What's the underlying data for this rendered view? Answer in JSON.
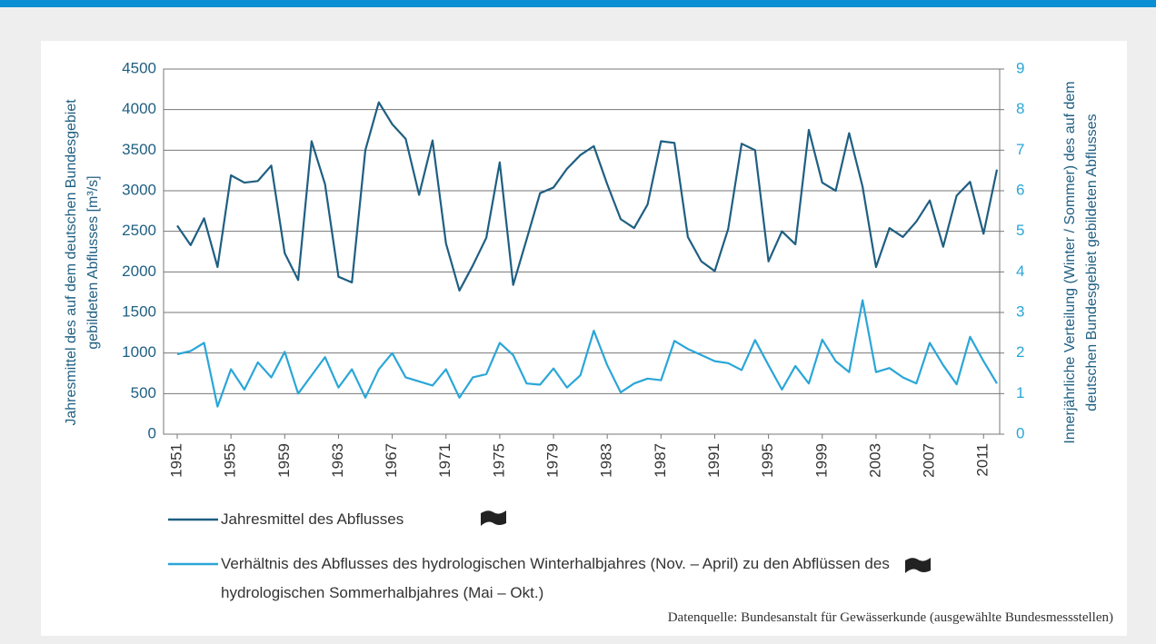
{
  "chart_data": {
    "type": "line",
    "ylabel": "Jahresmittel des auf dem deutschen Bundesgebiet gebildeten Abflusses  [m³/s]",
    "y2label": "Innerjährliche Verteilung (Winter / Sommer) des auf dem deutschen Bundesgebiet gebildeten Abflusses",
    "source": "Datenquelle: Bundesanstalt für Gewässerkunde (ausgewählte Bundesmessstellen)",
    "x": [
      1951,
      1952,
      1953,
      1954,
      1955,
      1956,
      1957,
      1958,
      1959,
      1960,
      1961,
      1962,
      1963,
      1964,
      1965,
      1966,
      1967,
      1968,
      1969,
      1970,
      1971,
      1972,
      1973,
      1974,
      1975,
      1976,
      1977,
      1978,
      1979,
      1980,
      1981,
      1982,
      1983,
      1984,
      1985,
      1986,
      1987,
      1988,
      1989,
      1990,
      1991,
      1992,
      1993,
      1994,
      1995,
      1996,
      1997,
      1998,
      1999,
      2000,
      2001,
      2002,
      2003,
      2004,
      2005,
      2006,
      2007,
      2008,
      2009,
      2010,
      2011,
      2012
    ],
    "xlim": [
      1951,
      2012
    ],
    "xticks": [
      1951,
      1955,
      1959,
      1963,
      1967,
      1971,
      1975,
      1979,
      1983,
      1987,
      1991,
      1995,
      1999,
      2003,
      2007,
      2011
    ],
    "ylim": [
      0,
      4500
    ],
    "yticks": [
      0,
      500,
      1000,
      1500,
      2000,
      2500,
      3000,
      3500,
      4000,
      4500
    ],
    "y2lim": [
      0,
      9
    ],
    "y2ticks": [
      0,
      1,
      2,
      3,
      4,
      5,
      6,
      7,
      8,
      9
    ],
    "grid": true,
    "series": [
      {
        "name": "Jahresmittel des Abflusses",
        "color": "#1f5f82",
        "values": [
          2570,
          2330,
          2660,
          2060,
          3190,
          3100,
          3120,
          3310,
          2230,
          1900,
          3610,
          3080,
          1940,
          1870,
          3500,
          4090,
          3820,
          3640,
          2950,
          3620,
          2350,
          1770,
          2080,
          2420,
          3350,
          1840,
          2400,
          2970,
          3040,
          3270,
          3440,
          3550,
          3080,
          2650,
          2540,
          2830,
          3610,
          3590,
          2430,
          2130,
          2010,
          2530,
          3580,
          3500,
          2130,
          2500,
          2340,
          3750,
          3100,
          3000,
          3710,
          3050,
          2060,
          2540,
          2430,
          2620,
          2880,
          2310,
          2940,
          3110,
          2470,
          3260
        ]
      },
      {
        "name": "Verhältnis des Abflusses des hydrologischen Winterhalbjahres (Nov. – April) zu den Abflüssen des hydrologischen Sommerhalbjahres (Mai – Okt.)",
        "color": "#2aa6d8",
        "axis": "y2",
        "values": [
          1.97,
          2.05,
          2.25,
          0.68,
          1.6,
          1.1,
          1.77,
          1.4,
          2.03,
          1.0,
          1.45,
          1.9,
          1.15,
          1.6,
          0.9,
          1.6,
          2.0,
          1.4,
          1.3,
          1.2,
          1.6,
          0.9,
          1.4,
          1.48,
          2.25,
          1.95,
          1.25,
          1.22,
          1.62,
          1.15,
          1.45,
          2.55,
          1.7,
          1.03,
          1.25,
          1.37,
          1.33,
          2.3,
          2.1,
          1.95,
          1.8,
          1.75,
          1.58,
          2.32,
          1.7,
          1.1,
          1.68,
          1.25,
          2.33,
          1.8,
          1.53,
          3.3,
          1.53,
          1.63,
          1.4,
          1.25,
          2.25,
          1.7,
          1.23,
          2.4,
          1.8,
          1.25
        ]
      }
    ]
  }
}
